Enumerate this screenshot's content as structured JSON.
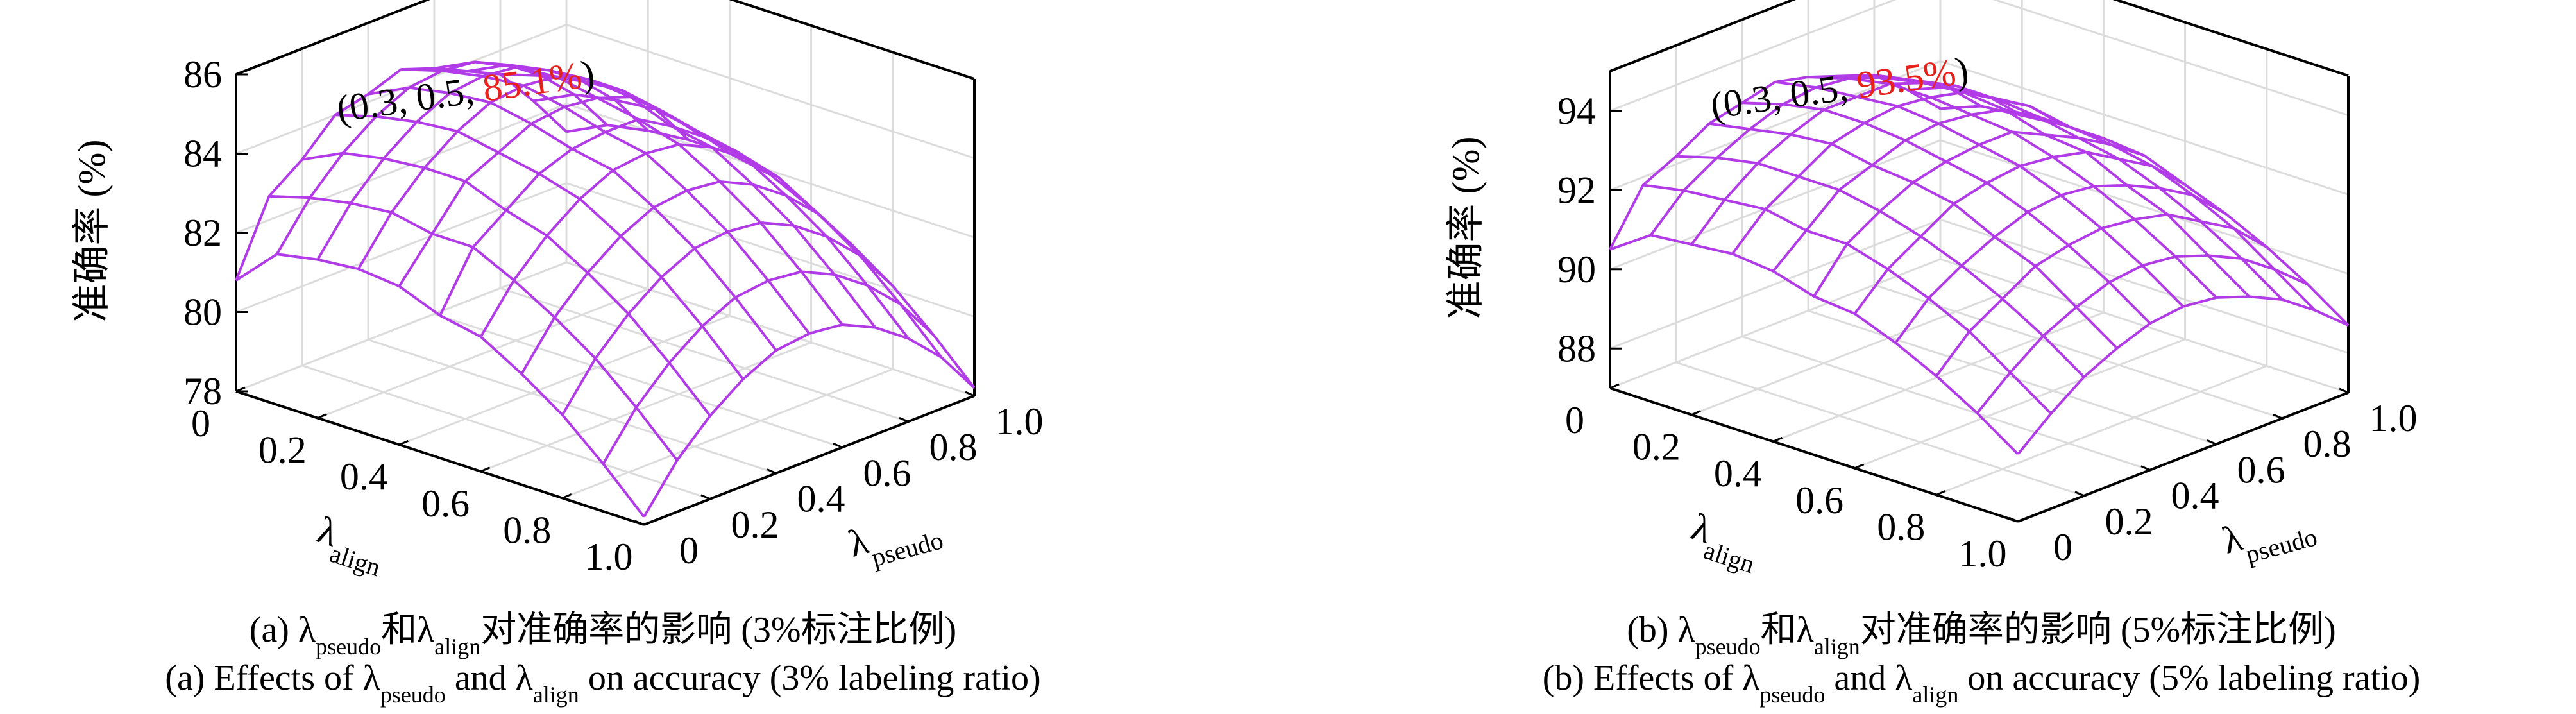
{
  "chart_data": [
    {
      "type": "surface",
      "annotation": [
        "(0.3, 0.5, ",
        "85.1%",
        ")"
      ],
      "xlabel": [
        "λ",
        "align"
      ],
      "ylabel": [
        "λ",
        "pseudo"
      ],
      "zlabel": "准确率 (%)",
      "caption_zh": [
        "(a) λ",
        "pseudo",
        "和λ",
        "align",
        "对准确率的影响 (3%标注比例)"
      ],
      "caption_en": [
        "(a) Effects of λ",
        "pseudo",
        " and λ",
        "align",
        " on accuracy (3% labeling ratio)"
      ],
      "x": [
        0,
        0.1,
        0.2,
        0.3,
        0.4,
        0.5,
        0.6,
        0.7,
        0.8,
        0.9,
        1
      ],
      "y": [
        0,
        0.1,
        0.2,
        0.3,
        0.4,
        0.5,
        0.6,
        0.7,
        0.8,
        0.9,
        1
      ],
      "xlim": [
        0,
        1
      ],
      "ylim": [
        0,
        1
      ],
      "zlim": [
        78,
        86
      ],
      "xticks": [
        0,
        0.2,
        0.4,
        0.6,
        0.8,
        {
          "value": 1,
          "label": "1.0"
        }
      ],
      "yticks": [
        0,
        0.2,
        0.4,
        0.6,
        0.8,
        {
          "value": 1,
          "label": "1.0"
        }
      ],
      "zticks": [
        78,
        80,
        82,
        84,
        86
      ],
      "color": "#b23be8",
      "grid": true,
      "z": [
        [
          80.8,
          82.6,
          83.2,
          84.0,
          84.2,
          84.5,
          84.2,
          83.8,
          83.4,
          82.4,
          81.3
        ],
        [
          81.8,
          82.9,
          83.7,
          84.3,
          84.7,
          84.8,
          84.7,
          84.3,
          83.7,
          82.9,
          81.8
        ],
        [
          82.0,
          83.1,
          83.9,
          84.5,
          84.9,
          85.0,
          84.9,
          84.5,
          83.9,
          83.1,
          82.0
        ],
        [
          82.1,
          83.2,
          84.0,
          84.6,
          85.0,
          85.1,
          85.0,
          84.6,
          84.0,
          83.2,
          82.1
        ],
        [
          82.0,
          83.0,
          84.0,
          84.4,
          84.8,
          84.9,
          84.8,
          84.5,
          83.8,
          83.0,
          82.1
        ],
        [
          81.6,
          83.0,
          83.6,
          84.2,
          84.5,
          84.6,
          84.6,
          84.1,
          83.5,
          82.8,
          81.9
        ],
        [
          81.4,
          82.5,
          83.3,
          83.9,
          84.3,
          84.4,
          84.3,
          83.9,
          83.3,
          82.5,
          81.4
        ],
        [
          80.8,
          81.9,
          82.7,
          83.3,
          83.7,
          83.8,
          83.7,
          83.3,
          82.7,
          81.9,
          80.8
        ],
        [
          80.1,
          81.2,
          82.0,
          82.6,
          83.0,
          83.1,
          83.0,
          82.6,
          82.0,
          81.2,
          80.1
        ],
        [
          79.2,
          80.3,
          81.1,
          81.7,
          82.1,
          82.2,
          82.1,
          81.7,
          81.1,
          80.3,
          79.2
        ],
        [
          78.2,
          79.3,
          80.1,
          80.7,
          81.1,
          81.2,
          81.1,
          80.7,
          80.1,
          79.3,
          78.2
        ]
      ]
    },
    {
      "type": "surface",
      "annotation": [
        "(0.3, 0.5, ",
        "93.5%",
        ")"
      ],
      "xlabel": [
        "λ",
        "align"
      ],
      "ylabel": [
        "λ",
        "pseudo"
      ],
      "zlabel": "准确率 (%)",
      "caption_zh": [
        "(b) λ",
        "pseudo",
        "和λ",
        "align",
        "对准确率的影响 (5%标注比例)"
      ],
      "caption_en": [
        "(b) Effects of λ",
        "pseudo",
        " and λ",
        "align",
        " on accuracy (5% labeling ratio)"
      ],
      "x": [
        0,
        0.1,
        0.2,
        0.3,
        0.4,
        0.5,
        0.6,
        0.7,
        0.8,
        0.9,
        1
      ],
      "y": [
        0,
        0.1,
        0.2,
        0.3,
        0.4,
        0.5,
        0.6,
        0.7,
        0.8,
        0.9,
        1
      ],
      "xlim": [
        0,
        1
      ],
      "ylim": [
        0,
        1
      ],
      "zlim": [
        87,
        95
      ],
      "xticks": [
        0,
        0.2,
        0.4,
        0.6,
        0.8,
        {
          "value": 1,
          "label": "1.0"
        }
      ],
      "yticks": [
        0,
        0.2,
        0.4,
        0.6,
        0.8,
        {
          "value": 1,
          "label": "1.0"
        }
      ],
      "zticks": [
        88,
        90,
        92,
        94
      ],
      "color": "#b23be8",
      "grid": true,
      "z": [
        [
          90.5,
          91.8,
          92.2,
          92.7,
          92.9,
          93.1,
          92.9,
          92.6,
          92.3,
          91.6,
          90.8
        ],
        [
          91.2,
          92.0,
          92.5,
          92.9,
          93.2,
          93.3,
          93.2,
          92.9,
          92.5,
          92.0,
          91.2
        ],
        [
          91.3,
          92.1,
          92.7,
          93.1,
          93.4,
          93.4,
          93.4,
          93.1,
          92.7,
          92.1,
          91.3
        ],
        [
          91.4,
          92.2,
          92.7,
          93.2,
          93.4,
          93.5,
          93.4,
          93.2,
          92.7,
          92.2,
          91.4
        ],
        [
          91.3,
          92.0,
          92.7,
          93.0,
          93.3,
          93.4,
          93.3,
          93.1,
          92.6,
          92.0,
          91.4
        ],
        [
          91.0,
          92.0,
          92.5,
          92.9,
          93.1,
          93.2,
          93.2,
          92.8,
          92.4,
          91.9,
          91.3
        ],
        [
          90.9,
          91.7,
          92.2,
          92.7,
          92.9,
          93.0,
          92.9,
          92.7,
          92.2,
          91.7,
          90.9
        ],
        [
          90.5,
          91.3,
          91.8,
          92.2,
          92.5,
          92.6,
          92.5,
          92.2,
          91.8,
          91.3,
          90.5
        ],
        [
          90.0,
          90.8,
          91.3,
          91.8,
          92.0,
          92.1,
          92.0,
          91.8,
          91.3,
          90.8,
          90.0
        ],
        [
          89.4,
          90.1,
          90.7,
          91.1,
          91.4,
          91.5,
          91.4,
          91.1,
          90.7,
          90.1,
          89.4
        ],
        [
          88.7,
          89.4,
          90.0,
          90.4,
          90.7,
          90.8,
          90.7,
          90.4,
          90.0,
          89.4,
          88.7
        ]
      ]
    }
  ]
}
